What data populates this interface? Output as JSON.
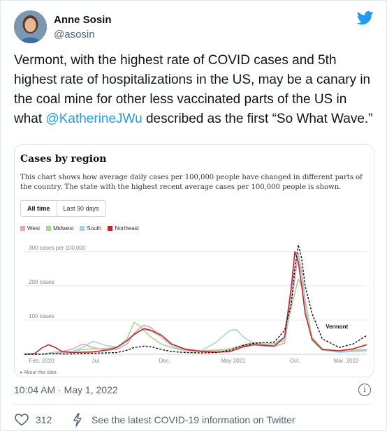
{
  "author": {
    "name": "Anne Sosin",
    "handle": "@asosin"
  },
  "tweet": {
    "text_before": "Vermont, with the highest rate of COVID cases and 5th highest rate of hospitalizations in the US, may be a canary in the coal mine for other less vaccinated parts of the US in what ",
    "mention": "@KatherineJWu",
    "text_after": " described as the first “So What Wave.”",
    "timestamp": "10:04 AM · May 1, 2022",
    "likes": "312",
    "covid_link": "See the latest COVID-19 information on Twitter"
  },
  "icons": {
    "avatar": "avatar",
    "twitter": "twitter-bird-icon",
    "info": "info-icon",
    "like": "heart-icon",
    "covid": "bolt-icon"
  },
  "chart_card": {
    "title": "Cases by region",
    "description": "This chart shows how average daily cases per 100,000 people have changed in different parts of the country. The state with the highest recent average cases per 100,000 people is shown.",
    "tabs": [
      "All time",
      "Last 90 days"
    ],
    "active_tab": "All time",
    "about": "▸ About this data"
  },
  "chart_data": {
    "type": "line",
    "title": "Cases by region",
    "x_ticks": [
      "Feb. 2020",
      "Jul.",
      "Dec.",
      "May 2021",
      "Oct.",
      "Mar. 2022"
    ],
    "y_ticks": [
      "100 cases",
      "200 cases",
      "300 cases per 100,000"
    ],
    "y_tick_values": [
      100,
      200,
      300
    ],
    "ylim": [
      0,
      320
    ],
    "legend_position": "top-left",
    "highlight_label": "Vermont",
    "series": [
      {
        "name": "West",
        "color": "#f0a3a6",
        "values": [
          [
            0,
            0
          ],
          [
            5,
            1
          ],
          [
            8,
            5
          ],
          [
            11,
            8
          ],
          [
            14,
            15
          ],
          [
            17,
            30
          ],
          [
            20,
            20
          ],
          [
            24,
            12
          ],
          [
            27,
            14
          ],
          [
            30,
            30
          ],
          [
            32,
            60
          ],
          [
            34,
            80
          ],
          [
            35,
            85
          ],
          [
            37,
            78
          ],
          [
            40,
            50
          ],
          [
            43,
            30
          ],
          [
            47,
            16
          ],
          [
            52,
            10
          ],
          [
            56,
            12
          ],
          [
            60,
            16
          ],
          [
            64,
            25
          ],
          [
            67,
            28
          ],
          [
            70,
            24
          ],
          [
            73,
            24
          ],
          [
            76,
            32
          ],
          [
            79,
            220
          ],
          [
            80,
            295
          ],
          [
            81,
            245
          ],
          [
            82,
            160
          ],
          [
            84,
            50
          ],
          [
            87,
            14
          ],
          [
            92,
            8
          ],
          [
            96,
            12
          ],
          [
            100,
            14
          ]
        ]
      },
      {
        "name": "Midwest",
        "color": "#a9d88f",
        "values": [
          [
            0,
            0
          ],
          [
            5,
            1
          ],
          [
            8,
            4
          ],
          [
            11,
            6
          ],
          [
            14,
            8
          ],
          [
            17,
            14
          ],
          [
            20,
            16
          ],
          [
            24,
            17
          ],
          [
            27,
            20
          ],
          [
            30,
            45
          ],
          [
            32,
            94
          ],
          [
            34,
            80
          ],
          [
            35,
            68
          ],
          [
            37,
            50
          ],
          [
            40,
            30
          ],
          [
            43,
            20
          ],
          [
            47,
            10
          ],
          [
            52,
            8
          ],
          [
            56,
            10
          ],
          [
            60,
            15
          ],
          [
            64,
            28
          ],
          [
            67,
            35
          ],
          [
            70,
            30
          ],
          [
            73,
            32
          ],
          [
            76,
            50
          ],
          [
            79,
            180
          ],
          [
            80,
            220
          ],
          [
            81,
            200
          ],
          [
            82,
            150
          ],
          [
            84,
            50
          ],
          [
            87,
            16
          ],
          [
            92,
            8
          ],
          [
            96,
            10
          ],
          [
            100,
            12
          ]
        ]
      },
      {
        "name": "South",
        "color": "#a9cfe6",
        "values": [
          [
            0,
            0
          ],
          [
            5,
            1
          ],
          [
            8,
            3
          ],
          [
            11,
            4
          ],
          [
            14,
            8
          ],
          [
            17,
            20
          ],
          [
            20,
            38
          ],
          [
            24,
            25
          ],
          [
            27,
            22
          ],
          [
            30,
            40
          ],
          [
            32,
            55
          ],
          [
            34,
            70
          ],
          [
            35,
            72
          ],
          [
            37,
            68
          ],
          [
            40,
            50
          ],
          [
            43,
            25
          ],
          [
            47,
            10
          ],
          [
            52,
            12
          ],
          [
            56,
            35
          ],
          [
            60,
            70
          ],
          [
            62,
            72
          ],
          [
            64,
            50
          ],
          [
            67,
            32
          ],
          [
            70,
            28
          ],
          [
            73,
            30
          ],
          [
            76,
            40
          ],
          [
            79,
            260
          ],
          [
            80,
            290
          ],
          [
            81,
            230
          ],
          [
            82,
            140
          ],
          [
            84,
            40
          ],
          [
            87,
            12
          ],
          [
            92,
            6
          ],
          [
            96,
            8
          ],
          [
            100,
            10
          ]
        ]
      },
      {
        "name": "Northeast",
        "color": "#c1272d",
        "values": [
          [
            0,
            0
          ],
          [
            3,
            2
          ],
          [
            5,
            18
          ],
          [
            7,
            28
          ],
          [
            9,
            20
          ],
          [
            11,
            8
          ],
          [
            14,
            5
          ],
          [
            17,
            6
          ],
          [
            20,
            7
          ],
          [
            24,
            12
          ],
          [
            27,
            20
          ],
          [
            30,
            40
          ],
          [
            32,
            58
          ],
          [
            34,
            70
          ],
          [
            35,
            75
          ],
          [
            37,
            70
          ],
          [
            40,
            56
          ],
          [
            43,
            30
          ],
          [
            47,
            14
          ],
          [
            52,
            8
          ],
          [
            56,
            6
          ],
          [
            60,
            8
          ],
          [
            64,
            22
          ],
          [
            67,
            28
          ],
          [
            70,
            26
          ],
          [
            73,
            24
          ],
          [
            76,
            50
          ],
          [
            78,
            200
          ],
          [
            79,
            300
          ],
          [
            80,
            270
          ],
          [
            81,
            200
          ],
          [
            82,
            120
          ],
          [
            84,
            45
          ],
          [
            87,
            14
          ],
          [
            92,
            10
          ],
          [
            96,
            16
          ],
          [
            100,
            28
          ]
        ]
      },
      {
        "name": "Vermont",
        "color": "#111111",
        "dashed": true,
        "values": [
          [
            0,
            0
          ],
          [
            5,
            0
          ],
          [
            8,
            2
          ],
          [
            11,
            1
          ],
          [
            14,
            1
          ],
          [
            17,
            2
          ],
          [
            20,
            3
          ],
          [
            24,
            4
          ],
          [
            27,
            5
          ],
          [
            30,
            12
          ],
          [
            32,
            20
          ],
          [
            34,
            22
          ],
          [
            35,
            24
          ],
          [
            37,
            22
          ],
          [
            40,
            14
          ],
          [
            43,
            8
          ],
          [
            47,
            5
          ],
          [
            52,
            4
          ],
          [
            56,
            5
          ],
          [
            60,
            12
          ],
          [
            64,
            26
          ],
          [
            67,
            32
          ],
          [
            70,
            34
          ],
          [
            73,
            36
          ],
          [
            76,
            70
          ],
          [
            78,
            150
          ],
          [
            79,
            250
          ],
          [
            80,
            320
          ],
          [
            81,
            280
          ],
          [
            82,
            200
          ],
          [
            84,
            120
          ],
          [
            87,
            45
          ],
          [
            92,
            20
          ],
          [
            96,
            30
          ],
          [
            100,
            55
          ]
        ]
      }
    ]
  }
}
